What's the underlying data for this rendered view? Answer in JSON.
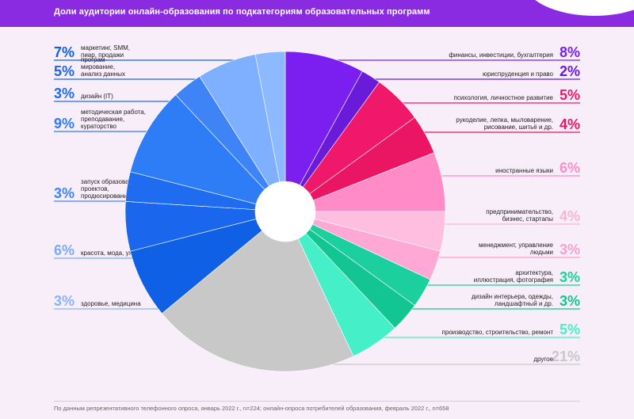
{
  "header": {
    "title": "Доли аудитории онлайн-образования по подкатегориям образовательных программ"
  },
  "footer": {
    "note": "По данным репрезентативного телефонного опроса, январь 2022 г., n=224; онлайн-опроса потребителей образования, февраль 2022 г., n=658"
  },
  "chart_data": {
    "type": "pie",
    "style": "donut",
    "slices": [
      {
        "label_lines": [
          "финансы, инвестиции, бухгалтерия"
        ],
        "pct_label": "8%",
        "value": 8,
        "color": "#7a1ff0",
        "side": "right"
      },
      {
        "label_lines": [
          "юриспруденция и право"
        ],
        "pct_label": "2%",
        "value": 2,
        "color": "#6a1ad9",
        "side": "right"
      },
      {
        "label_lines": [
          "психология, личностное развитие"
        ],
        "pct_label": "5%",
        "value": 5,
        "color": "#f0186b",
        "side": "right"
      },
      {
        "label_lines": [
          "рукоделие, лепка, мыловарение,",
          "рисование, шитьё и др."
        ],
        "pct_label": "4%",
        "value": 4,
        "color": "#ea1563",
        "side": "right"
      },
      {
        "label_lines": [
          "иностранные языки"
        ],
        "pct_label": "6%",
        "value": 6,
        "color": "#ff8cc6",
        "side": "right"
      },
      {
        "label_lines": [
          "предпринимательство,",
          "бизнес, стартапы"
        ],
        "pct_label": "4%",
        "value": 4,
        "color": "#ffbde0",
        "side": "right"
      },
      {
        "label_lines": [
          "менеджмент, управление",
          "людьми"
        ],
        "pct_label": "3%",
        "value": 3,
        "color": "#ffa8d6",
        "side": "right"
      },
      {
        "label_lines": [
          "архитектура,",
          "иллюстрация, фотография"
        ],
        "pct_label": "3%",
        "value": 3,
        "color": "#1ccf9e",
        "side": "right"
      },
      {
        "label_lines": [
          "дизайн интерьера, одежды,",
          "ландшафтный и др."
        ],
        "pct_label": "3%",
        "value": 3,
        "color": "#12c592",
        "side": "right"
      },
      {
        "label_lines": [
          "производство, строительство, ремонт"
        ],
        "pct_label": "5%",
        "value": 5,
        "color": "#45f0c8",
        "side": "right"
      },
      {
        "label_lines": [
          "другое"
        ],
        "pct_label": "21%",
        "value": 21,
        "color": "#c8c8c8",
        "side": "right"
      },
      {
        "label_lines": [
          "маркетинг, SMM,",
          "пиар, продажи"
        ],
        "pct_label": "7%",
        "value": 7,
        "color": "#1060e6",
        "side": "left"
      },
      {
        "label_lines": [
          "програм-",
          "мирование,",
          "анализ данных"
        ],
        "pct_label": "5%",
        "value": 5,
        "color": "#1a66ec",
        "side": "left"
      },
      {
        "label_lines": [
          "дизайн (IT)"
        ],
        "pct_label": "3%",
        "value": 3,
        "color": "#1f6cf0",
        "side": "left"
      },
      {
        "label_lines": [
          "методическая работа,",
          "преподавание,",
          "кураторство"
        ],
        "pct_label": "9%",
        "value": 9,
        "color": "#2e7cf6",
        "side": "left"
      },
      {
        "label_lines": [
          "запуск образовательных",
          "проектов,",
          "продюсирование"
        ],
        "pct_label": "3%",
        "value": 3,
        "color": "#3f84f7",
        "side": "left"
      },
      {
        "label_lines": [
          "красота, мода, уход за внешностью"
        ],
        "pct_label": "6%",
        "value": 6,
        "color": "#7fb0ff",
        "side": "left"
      },
      {
        "label_lines": [
          "здоровье, медицина"
        ],
        "pct_label": "3%",
        "value": 3,
        "color": "#8cb9ff",
        "side": "left"
      }
    ]
  }
}
